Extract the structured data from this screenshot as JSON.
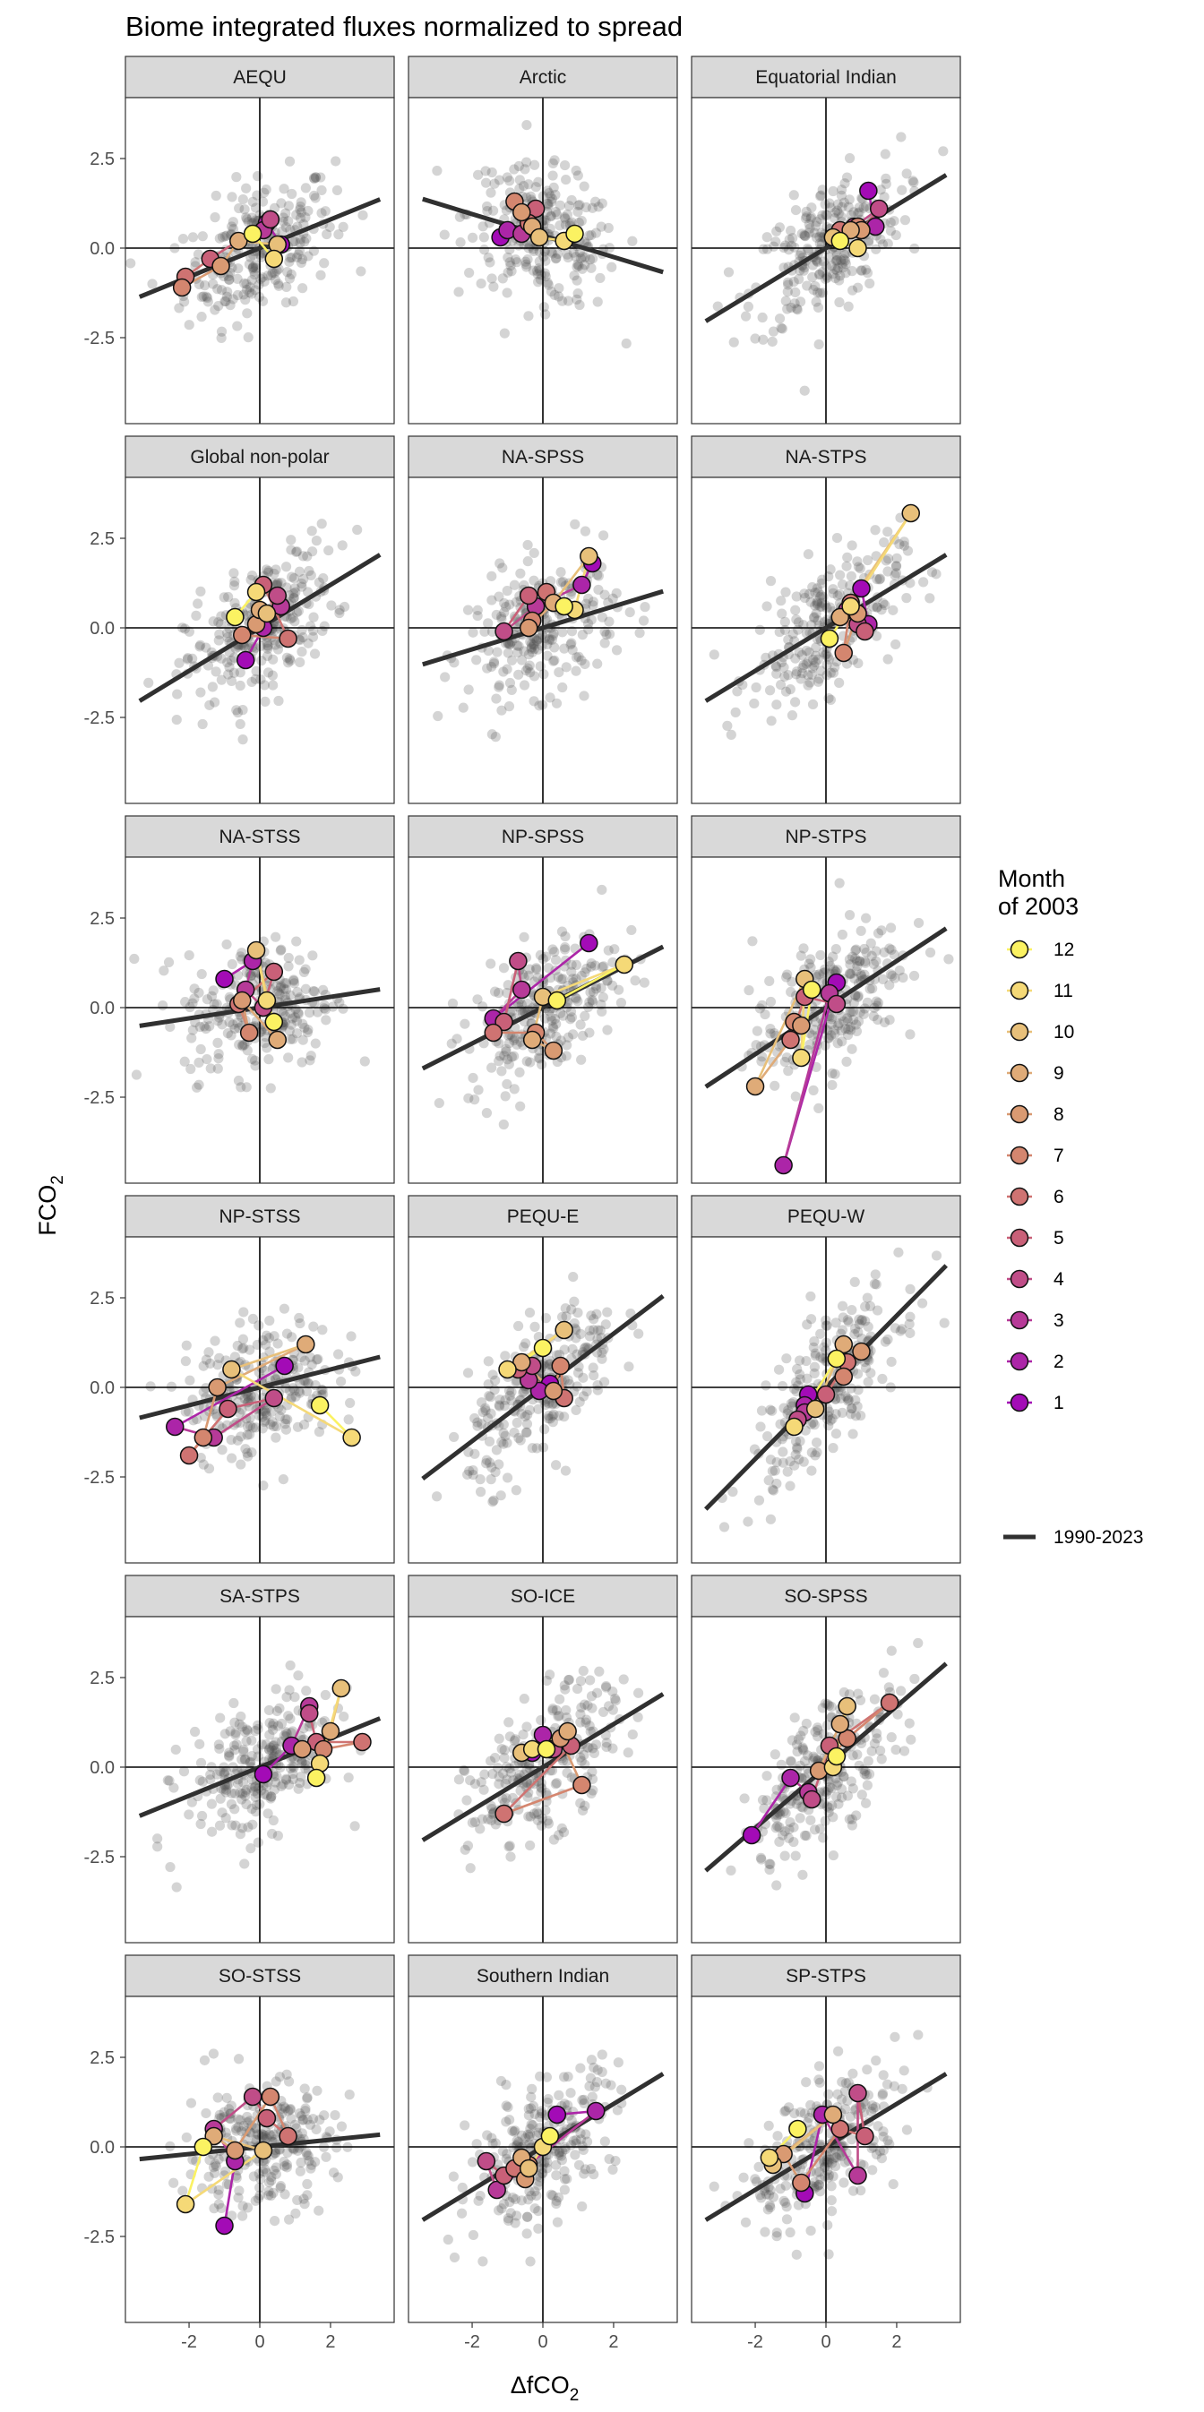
{
  "chart_data": {
    "type": "scatter",
    "title": "Biome integrated fluxes normalized to spread",
    "xlabel_main": "ΔfCO",
    "xlabel_sub": "2",
    "ylabel_main": "FCO",
    "ylabel_sub": "2",
    "xlim": [
      -3.8,
      3.8
    ],
    "ylim": [
      -4.9,
      4.2
    ],
    "x_ticks": [
      -2,
      0,
      2
    ],
    "y_ticks": [
      2.5,
      0.0,
      -2.5
    ],
    "x_tick_labels": [
      "-2",
      "0",
      "2"
    ],
    "y_tick_labels": [
      "2.5",
      "0.0",
      "-2.5"
    ],
    "legend": {
      "title_line1": "Month",
      "title_line2": "of 2003",
      "months": [
        "12",
        "11",
        "10",
        "9",
        "8",
        "7",
        "6",
        "5",
        "4",
        "3",
        "2",
        "1"
      ],
      "colors": [
        "#fbf262",
        "#f5d977",
        "#e8c07a",
        "#dfab78",
        "#d99a72",
        "#d4866f",
        "#cf7372",
        "#c96078",
        "#c04d88",
        "#b73a98",
        "#ac25a8",
        "#a30bb6"
      ],
      "line_label": "1990-2023",
      "position": "right"
    },
    "panels": [
      {
        "name": "AEQU",
        "fit": [
          0.0,
          0.4
        ],
        "months": [
          [
            0.6,
            0.1
          ],
          [
            0.2,
            0.7
          ],
          [
            0.1,
            0.5
          ],
          [
            0.3,
            0.8
          ],
          [
            -1.4,
            -0.3
          ],
          [
            -2.1,
            -0.8
          ],
          [
            -2.2,
            -1.1
          ],
          [
            -1.1,
            -0.5
          ],
          [
            -0.6,
            0.2
          ],
          [
            0.5,
            0.1
          ],
          [
            0.4,
            -0.3
          ],
          [
            -0.2,
            0.4
          ]
        ]
      },
      {
        "name": "Arctic",
        "fit": [
          0.35,
          -0.3
        ],
        "months": [
          [
            -1.2,
            0.3
          ],
          [
            -1.0,
            0.5
          ],
          [
            -0.6,
            0.4
          ],
          [
            -0.3,
            0.6
          ],
          [
            -0.2,
            1.1
          ],
          [
            -0.4,
            0.7
          ],
          [
            -0.8,
            1.3
          ],
          [
            -0.6,
            1.0
          ],
          [
            -0.3,
            0.6
          ],
          [
            -0.1,
            0.3
          ],
          [
            0.6,
            0.2
          ],
          [
            0.9,
            0.4
          ]
        ]
      },
      {
        "name": "Equatorial Indian",
        "fit": [
          0.0,
          0.6
        ],
        "months": [
          [
            1.2,
            1.6
          ],
          [
            1.4,
            0.6
          ],
          [
            0.8,
            0.6
          ],
          [
            1.5,
            1.1
          ],
          [
            1.0,
            0.5
          ],
          [
            0.4,
            0.5
          ],
          [
            0.9,
            0.6
          ],
          [
            1.0,
            0.5
          ],
          [
            0.7,
            0.5
          ],
          [
            0.2,
            0.3
          ],
          [
            0.9,
            0.0
          ],
          [
            0.4,
            0.2
          ]
        ]
      },
      {
        "name": "Global non-polar",
        "fit": [
          0.0,
          0.6
        ],
        "months": [
          [
            -0.4,
            -0.9
          ],
          [
            0.1,
            0.0
          ],
          [
            0.6,
            0.6
          ],
          [
            0.5,
            0.9
          ],
          [
            0.1,
            1.2
          ],
          [
            0.8,
            -0.3
          ],
          [
            -0.5,
            -0.2
          ],
          [
            -0.1,
            0.1
          ],
          [
            0.0,
            0.5
          ],
          [
            0.2,
            0.4
          ],
          [
            -0.1,
            1.0
          ],
          [
            -0.7,
            0.3
          ]
        ]
      },
      {
        "name": "NA-SPSS",
        "fit": [
          0.0,
          0.3
        ],
        "months": [
          [
            1.4,
            1.8
          ],
          [
            1.1,
            1.2
          ],
          [
            -0.2,
            0.6
          ],
          [
            -1.1,
            -0.1
          ],
          [
            -0.4,
            0.9
          ],
          [
            0.1,
            1.0
          ],
          [
            -0.3,
            0.2
          ],
          [
            -0.4,
            0.0
          ],
          [
            0.3,
            0.7
          ],
          [
            1.3,
            2.0
          ],
          [
            0.9,
            0.5
          ],
          [
            0.6,
            0.6
          ]
        ]
      },
      {
        "name": "NA-STPS",
        "fit": [
          0.0,
          0.6
        ],
        "months": [
          [
            1.0,
            1.1
          ],
          [
            1.2,
            0.1
          ],
          [
            0.6,
            0.5
          ],
          [
            0.9,
            0.1
          ],
          [
            1.1,
            -0.1
          ],
          [
            0.7,
            0.7
          ],
          [
            0.5,
            -0.7
          ],
          [
            0.9,
            0.4
          ],
          [
            0.4,
            0.3
          ],
          [
            2.4,
            3.2
          ],
          [
            0.7,
            0.6
          ],
          [
            0.1,
            -0.3
          ]
        ]
      },
      {
        "name": "NA-STSS",
        "fit": [
          0.0,
          0.15
        ],
        "months": [
          [
            -1.0,
            0.8
          ],
          [
            -0.2,
            1.3
          ],
          [
            -0.4,
            0.5
          ],
          [
            0.1,
            0.0
          ],
          [
            0.4,
            1.0
          ],
          [
            -0.6,
            0.1
          ],
          [
            -0.3,
            -0.7
          ],
          [
            -0.5,
            0.2
          ],
          [
            0.5,
            -0.9
          ],
          [
            -0.1,
            1.6
          ],
          [
            0.2,
            0.2
          ],
          [
            0.4,
            -0.4
          ]
        ]
      },
      {
        "name": "NP-SPSS",
        "fit": [
          0.0,
          0.5
        ],
        "months": [
          [
            1.3,
            1.8
          ],
          [
            -1.4,
            -0.3
          ],
          [
            -0.6,
            0.5
          ],
          [
            -0.7,
            1.3
          ],
          [
            -1.1,
            -0.4
          ],
          [
            -1.4,
            -0.7
          ],
          [
            -0.2,
            -0.7
          ],
          [
            0.3,
            -1.2
          ],
          [
            -0.3,
            -0.9
          ],
          [
            0.0,
            0.3
          ],
          [
            2.3,
            1.2
          ],
          [
            0.4,
            0.2
          ]
        ]
      },
      {
        "name": "NP-STPS",
        "fit": [
          0.0,
          0.65
        ],
        "months": [
          [
            0.3,
            0.7
          ],
          [
            -1.2,
            -4.4
          ],
          [
            0.1,
            0.4
          ],
          [
            0.3,
            0.1
          ],
          [
            -0.6,
            0.3
          ],
          [
            -1.0,
            -0.9
          ],
          [
            -0.9,
            -0.4
          ],
          [
            -0.7,
            -0.5
          ],
          [
            -2.0,
            -2.2
          ],
          [
            -0.6,
            0.8
          ],
          [
            -0.7,
            -1.4
          ],
          [
            -0.4,
            0.5
          ]
        ]
      },
      {
        "name": "NP-STSS",
        "fit": [
          0.0,
          0.25
        ],
        "months": [
          [
            0.7,
            0.6
          ],
          [
            -2.4,
            -1.1
          ],
          [
            -1.3,
            -1.4
          ],
          [
            0.4,
            -0.3
          ],
          [
            -0.9,
            -0.6
          ],
          [
            -2.0,
            -1.9
          ],
          [
            -1.6,
            -1.4
          ],
          [
            -1.2,
            0.0
          ],
          [
            1.3,
            1.2
          ],
          [
            -0.8,
            0.5
          ],
          [
            2.6,
            -1.4
          ],
          [
            1.7,
            -0.5
          ]
        ]
      },
      {
        "name": "PEQU-E",
        "fit": [
          0.0,
          0.75
        ],
        "months": [
          [
            0.2,
            0.1
          ],
          [
            -0.1,
            -0.1
          ],
          [
            -0.4,
            0.2
          ],
          [
            -0.3,
            0.6
          ],
          [
            -0.7,
            0.5
          ],
          [
            0.6,
            -0.3
          ],
          [
            0.5,
            0.6
          ],
          [
            0.3,
            -0.1
          ],
          [
            -0.6,
            0.7
          ],
          [
            0.6,
            1.6
          ],
          [
            -1.0,
            0.5
          ],
          [
            0.0,
            1.1
          ]
        ]
      },
      {
        "name": "PEQU-W",
        "fit": [
          0.0,
          1.0
        ],
        "months": [
          [
            -0.5,
            -0.2
          ],
          [
            -0.6,
            -0.5
          ],
          [
            -0.6,
            -0.7
          ],
          [
            -0.8,
            -0.9
          ],
          [
            0.0,
            -0.2
          ],
          [
            0.6,
            0.7
          ],
          [
            0.5,
            0.3
          ],
          [
            1.0,
            1.0
          ],
          [
            0.5,
            1.2
          ],
          [
            -0.3,
            -0.6
          ],
          [
            -0.9,
            -1.1
          ],
          [
            0.3,
            0.8
          ]
        ]
      },
      {
        "name": "SA-STPS",
        "fit": [
          0.0,
          0.4
        ],
        "months": [
          [
            0.1,
            -0.2
          ],
          [
            0.9,
            0.6
          ],
          [
            1.4,
            1.7
          ],
          [
            1.4,
            1.5
          ],
          [
            1.6,
            0.7
          ],
          [
            2.9,
            0.7
          ],
          [
            1.8,
            0.5
          ],
          [
            1.2,
            0.5
          ],
          [
            2.0,
            1.0
          ],
          [
            2.3,
            2.2
          ],
          [
            1.7,
            0.1
          ],
          [
            1.6,
            -0.3
          ]
        ]
      },
      {
        "name": "SO-ICE",
        "fit": [
          0.0,
          0.6
        ],
        "months": [
          [
            -0.3,
            0.4
          ],
          [
            0.0,
            0.9
          ],
          [
            0.2,
            0.5
          ],
          [
            0.3,
            0.5
          ],
          [
            0.8,
            0.6
          ],
          [
            -1.1,
            -1.3
          ],
          [
            1.1,
            -0.5
          ],
          [
            0.5,
            0.8
          ],
          [
            0.7,
            1.0
          ],
          [
            -0.6,
            0.4
          ],
          [
            -0.3,
            0.5
          ],
          [
            0.1,
            0.5
          ]
        ]
      },
      {
        "name": "SO-SPSS",
        "fit": [
          0.0,
          0.85
        ],
        "months": [
          [
            -2.1,
            -1.9
          ],
          [
            -1.0,
            -0.3
          ],
          [
            -0.5,
            -0.7
          ],
          [
            -0.4,
            -0.9
          ],
          [
            0.1,
            0.6
          ],
          [
            1.8,
            1.8
          ],
          [
            0.6,
            0.8
          ],
          [
            -0.2,
            -0.1
          ],
          [
            0.4,
            1.2
          ],
          [
            0.6,
            1.7
          ],
          [
            0.2,
            0.0
          ],
          [
            0.3,
            0.3
          ]
        ]
      },
      {
        "name": "SO-STSS",
        "fit": [
          0.0,
          0.1
        ],
        "months": [
          [
            -1.0,
            -2.2
          ],
          [
            -0.7,
            -0.4
          ],
          [
            -1.3,
            0.5
          ],
          [
            -0.2,
            1.4
          ],
          [
            0.2,
            0.8
          ],
          [
            0.8,
            0.3
          ],
          [
            0.3,
            1.4
          ],
          [
            -0.7,
            -0.1
          ],
          [
            -1.3,
            0.3
          ],
          [
            0.1,
            -0.1
          ],
          [
            -2.1,
            -1.6
          ],
          [
            -1.6,
            0.0
          ]
        ]
      },
      {
        "name": "Southern Indian",
        "fit": [
          0.0,
          0.6
        ],
        "months": [
          [
            0.4,
            0.9
          ],
          [
            1.5,
            1.0
          ],
          [
            -1.3,
            -1.2
          ],
          [
            -1.6,
            -0.4
          ],
          [
            -1.1,
            -0.8
          ],
          [
            -0.8,
            -0.6
          ],
          [
            -0.4,
            -0.5
          ],
          [
            -0.5,
            -0.9
          ],
          [
            -0.6,
            -0.3
          ],
          [
            -0.4,
            -0.6
          ],
          [
            0.0,
            0.0
          ],
          [
            0.2,
            0.3
          ]
        ]
      },
      {
        "name": "SP-STPS",
        "fit": [
          0.0,
          0.6
        ],
        "months": [
          [
            -0.6,
            -1.3
          ],
          [
            -0.1,
            0.9
          ],
          [
            0.9,
            -0.8
          ],
          [
            0.9,
            1.5
          ],
          [
            1.1,
            0.3
          ],
          [
            0.4,
            0.5
          ],
          [
            -0.7,
            -1.0
          ],
          [
            -1.2,
            -0.2
          ],
          [
            0.2,
            0.9
          ],
          [
            -1.5,
            -0.5
          ],
          [
            -1.6,
            -0.3
          ],
          [
            -0.8,
            0.5
          ]
        ]
      }
    ]
  }
}
